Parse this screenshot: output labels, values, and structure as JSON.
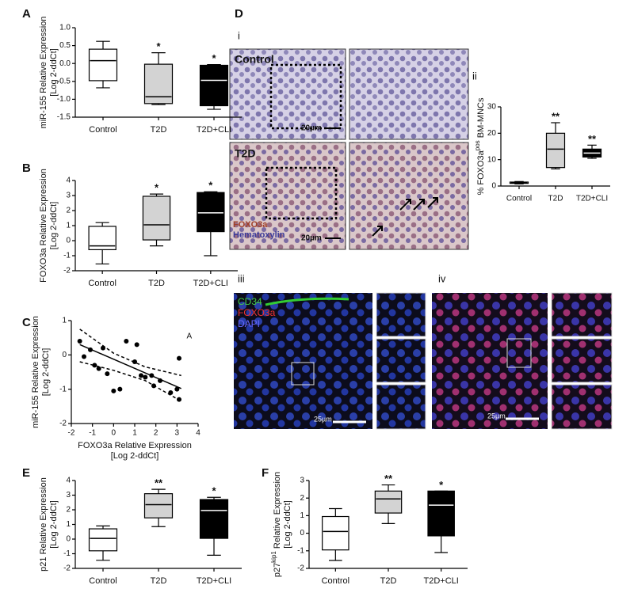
{
  "chart_data": [
    {
      "type": "box",
      "panel": "A",
      "ylabel": [
        [
          {
            "text": "miR-155 Relative Expression"
          }
        ],
        [
          {
            "text": "[Log 2-ddCt]"
          }
        ]
      ],
      "categories": [
        "Control",
        "T2D",
        "T2D+CLI"
      ],
      "ylim": [
        -1.5,
        1.0
      ],
      "yticks": [
        -1.5,
        {
          "value": -1,
          "label": "-1.0"
        },
        -0.5,
        {
          "value": 0,
          "label": "0.0"
        },
        0.5,
        {
          "value": 1,
          "label": "1.0"
        }
      ],
      "boxes": [
        {
          "min": -0.68,
          "q1": -0.48,
          "median": 0.08,
          "q3": 0.4,
          "max": 0.62,
          "color": "#ffffff",
          "median_color": "#000000"
        },
        {
          "min": -1.15,
          "q1": -1.12,
          "median": -0.93,
          "q3": -0.02,
          "max": 0.3,
          "color": "#d3d3d3",
          "median_color": "#000000"
        },
        {
          "min": -1.28,
          "q1": -1.18,
          "median": -0.47,
          "q3": -0.05,
          "max": -0.03,
          "color": "#000000",
          "median_color": "#ffffff"
        }
      ],
      "annotations": [
        null,
        "*",
        "*"
      ]
    },
    {
      "type": "box",
      "panel": "B",
      "ylabel": [
        [
          {
            "text": "FOXO3a Relative Expression"
          }
        ],
        [
          {
            "text": "[Log 2-ddCt]"
          }
        ]
      ],
      "categories": [
        "Control",
        "T2D",
        "T2D+CLI"
      ],
      "ylim": [
        -2,
        4
      ],
      "yticks": [
        -2,
        -1,
        0,
        1,
        2,
        3,
        4
      ],
      "boxes": [
        {
          "min": -1.55,
          "q1": -0.6,
          "median": -0.35,
          "q3": 0.95,
          "max": 1.2,
          "color": "#ffffff",
          "median_color": "#000000"
        },
        {
          "min": -0.35,
          "q1": 0.05,
          "median": 1.05,
          "q3": 2.95,
          "max": 3.1,
          "color": "#d3d3d3",
          "median_color": "#000000"
        },
        {
          "min": -1.0,
          "q1": 0.6,
          "median": 1.85,
          "q3": 3.2,
          "max": 3.25,
          "color": "#000000",
          "median_color": "#ffffff"
        }
      ],
      "annotations": [
        null,
        "*",
        "*"
      ]
    },
    {
      "type": "scatter",
      "panel": "C",
      "ylabel": [
        [
          {
            "text": "miR-155 Relative Expression"
          }
        ],
        [
          {
            "text": "[Log 2-ddCt]"
          }
        ]
      ],
      "xlabel": [
        [
          {
            "text": "FOXO3a Relative Expression"
          }
        ],
        [
          {
            "text": "[Log 2-ddCt]"
          }
        ]
      ],
      "xlim": [
        -2,
        4
      ],
      "xticks": [
        -2,
        -1,
        0,
        1,
        2,
        3,
        4
      ],
      "ylim": [
        -2,
        1
      ],
      "yticks": [
        -2,
        -1,
        0,
        1
      ],
      "x": [
        -1.6,
        -1.4,
        -1.1,
        -0.9,
        -0.7,
        -0.5,
        -0.3,
        0.0,
        0.3,
        0.6,
        1.0,
        1.1,
        1.3,
        1.5,
        1.8,
        1.9,
        2.2,
        2.7,
        3.0,
        3.1,
        3.1
      ],
      "values": [
        0.4,
        -0.05,
        0.15,
        -0.3,
        -0.4,
        0.2,
        -0.55,
        -1.05,
        -1.0,
        0.4,
        -0.2,
        0.3,
        -0.6,
        -0.65,
        -0.6,
        -0.9,
        -0.75,
        -1.1,
        -1.0,
        -1.3,
        -0.1
      ],
      "color": "#000000",
      "fit": {
        "x": [
          -1.6,
          3.2
        ],
        "y": [
          0.3,
          -0.98
        ]
      },
      "ci_upper": {
        "x": [
          -1.6,
          0,
          1.5,
          3.2
        ],
        "y": [
          0.75,
          0.05,
          -0.35,
          -0.6
        ]
      },
      "ci_lower": {
        "x": [
          -1.6,
          0,
          1.5,
          3.2
        ],
        "y": [
          -0.2,
          -0.45,
          -0.75,
          -1.35
        ]
      },
      "annotation": "A"
    },
    {
      "type": "box",
      "panel": "ii",
      "ylabel": [
        [
          {
            "text": "% FOXO3a"
          },
          {
            "text": "pos",
            "sup": true
          },
          {
            "text": " BM-MNCs"
          }
        ]
      ],
      "categories": [
        "Control",
        "T2D",
        "T2D+CLI"
      ],
      "ylim": [
        0,
        30
      ],
      "yticks": [
        0,
        10,
        20,
        30
      ],
      "boxes": [
        {
          "min": 0.8,
          "q1": 1.0,
          "median": 1.2,
          "q3": 1.5,
          "max": 1.7,
          "color": "#ffffff",
          "median_color": "#000000"
        },
        {
          "min": 6.5,
          "q1": 7,
          "median": 14,
          "q3": 20,
          "max": 24,
          "color": "#d3d3d3",
          "median_color": "#000000"
        },
        {
          "min": 10.5,
          "q1": 11,
          "median": 12.5,
          "q3": 14,
          "max": 15.5,
          "color": "#000000",
          "median_color": "#ffffff"
        }
      ],
      "annotations": [
        null,
        "**",
        "**"
      ]
    },
    {
      "type": "box",
      "panel": "E",
      "ylabel": [
        [
          {
            "text": "p21 Relative Expression"
          }
        ],
        [
          {
            "text": "[Log 2-ddCt]"
          }
        ]
      ],
      "categories": [
        "Control",
        "T2D",
        "T2D+CLI"
      ],
      "ylim": [
        -2,
        4
      ],
      "yticks": [
        -2,
        -1,
        0,
        1,
        2,
        3,
        4
      ],
      "boxes": [
        {
          "min": -1.45,
          "q1": -0.8,
          "median": 0.05,
          "q3": 0.7,
          "max": 0.9,
          "color": "#ffffff",
          "median_color": "#000000"
        },
        {
          "min": 0.85,
          "q1": 1.45,
          "median": 2.35,
          "q3": 3.1,
          "max": 3.4,
          "color": "#d3d3d3",
          "median_color": "#000000"
        },
        {
          "min": -1.1,
          "q1": 0.05,
          "median": 1.95,
          "q3": 2.7,
          "max": 2.85,
          "color": "#000000",
          "median_color": "#ffffff"
        }
      ],
      "annotations": [
        null,
        "**",
        "*"
      ]
    },
    {
      "type": "box",
      "panel": "F",
      "ylabel": [
        [
          {
            "text": "p27"
          },
          {
            "text": "kip1",
            "sup": true
          },
          {
            "text": " Relative Expression"
          }
        ],
        [
          {
            "text": "[Log 2-ddCt]"
          }
        ]
      ],
      "categories": [
        "Control",
        "T2D",
        "T2D+CLI"
      ],
      "ylim": [
        -2,
        3
      ],
      "yticks": [
        -2,
        -1,
        0,
        1,
        2,
        3
      ],
      "boxes": [
        {
          "min": -1.55,
          "q1": -0.95,
          "median": 0.1,
          "q3": 0.95,
          "max": 1.4,
          "color": "#ffffff",
          "median_color": "#000000"
        },
        {
          "min": 0.55,
          "q1": 1.15,
          "median": 1.95,
          "q3": 2.4,
          "max": 2.75,
          "color": "#d3d3d3",
          "median_color": "#000000"
        },
        {
          "min": -1.1,
          "q1": -0.15,
          "median": 1.6,
          "q3": 2.4,
          "max": 2.4,
          "color": "#000000",
          "median_color": "#ffffff"
        }
      ],
      "annotations": [
        null,
        "**",
        "*"
      ]
    }
  ],
  "micrographs": {
    "label": "D",
    "sub_i": "i",
    "sub_iii": "iii",
    "sub_iv": "iv",
    "control": "Control",
    "t2d": "T2D",
    "scale_20": "20µm",
    "foxo3a": "FOXO3a",
    "hematoxylin": "Hematoxylin",
    "cd34": "CD34",
    "foxo3a_red": "FOXO3a",
    "dapi": "DAPI",
    "scale_25": "25µm"
  }
}
